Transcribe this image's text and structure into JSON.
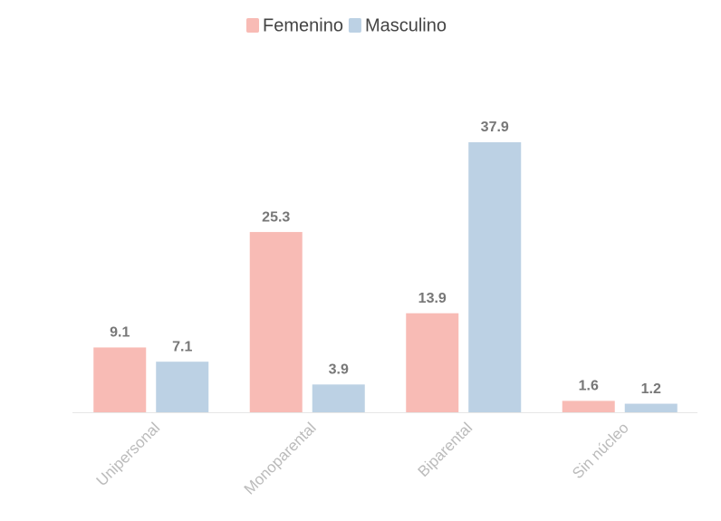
{
  "chart_data": {
    "type": "bar",
    "categories": [
      "Unipersonal",
      "Monoparental",
      "Biparental",
      "Sin núcleo"
    ],
    "series": [
      {
        "name": "Femenino",
        "color": "#f8bbb5",
        "values": [
          9.1,
          25.3,
          13.9,
          1.6
        ]
      },
      {
        "name": "Masculino",
        "color": "#bcd1e4",
        "values": [
          7.1,
          3.9,
          37.9,
          1.2
        ]
      }
    ],
    "legend": "top"
  }
}
